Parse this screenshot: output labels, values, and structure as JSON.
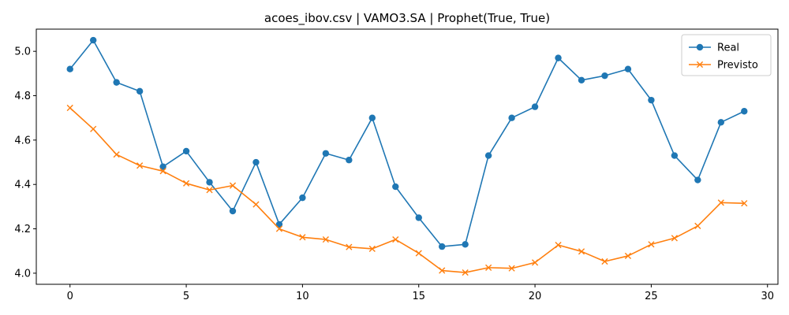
{
  "chart_data": {
    "type": "line",
    "title": "acoes_ibov.csv | VAMO3.SA | Prophet(True, True)",
    "xlabel": "",
    "ylabel": "",
    "x": [
      0,
      1,
      2,
      3,
      4,
      5,
      6,
      7,
      8,
      9,
      10,
      11,
      12,
      13,
      14,
      15,
      16,
      17,
      18,
      19,
      20,
      21,
      22,
      23,
      24,
      25,
      26,
      27,
      28,
      29
    ],
    "xlim": [
      -1.45,
      30.45
    ],
    "ylim": [
      3.95,
      5.1
    ],
    "xticks": [
      0,
      5,
      10,
      15,
      20,
      25,
      30
    ],
    "yticks": [
      4.0,
      4.2,
      4.4,
      4.6,
      4.8,
      5.0
    ],
    "xtick_labels": [
      "0",
      "5",
      "10",
      "15",
      "20",
      "25",
      "30"
    ],
    "ytick_labels": [
      "4.0",
      "4.2",
      "4.4",
      "4.6",
      "4.8",
      "5.0"
    ],
    "grid": false,
    "legend": "top-right",
    "series": [
      {
        "name": "Real",
        "color": "#1f77b4",
        "marker": "circle",
        "values": [
          4.92,
          5.05,
          4.86,
          4.82,
          4.48,
          4.55,
          4.41,
          4.28,
          4.5,
          4.22,
          4.34,
          4.54,
          4.51,
          4.7,
          4.39,
          4.25,
          4.12,
          4.13,
          4.53,
          4.7,
          4.75,
          4.97,
          4.87,
          4.89,
          4.92,
          4.78,
          4.53,
          4.42,
          4.68,
          4.73
        ]
      },
      {
        "name": "Previsto",
        "color": "#ff7f0e",
        "marker": "x",
        "values": [
          4.745,
          4.65,
          4.535,
          4.485,
          4.46,
          4.405,
          4.375,
          4.395,
          4.31,
          4.2,
          4.162,
          4.152,
          4.118,
          4.11,
          4.152,
          4.09,
          4.012,
          4.003,
          4.025,
          4.022,
          4.048,
          4.127,
          4.098,
          4.053,
          4.078,
          4.13,
          4.158,
          4.213,
          4.318,
          4.315
        ]
      }
    ]
  }
}
